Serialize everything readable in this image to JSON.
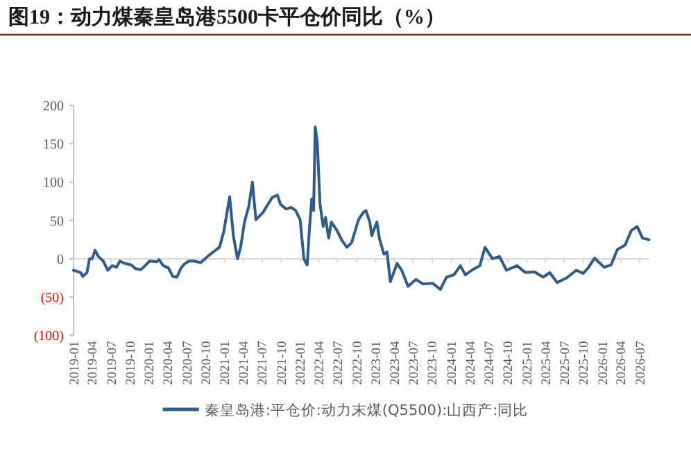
{
  "chart_data": {
    "type": "line",
    "title": "图19：动力煤秦皇岛港5500卡平仓价同比（%）",
    "x": [
      "2019-01-01",
      "2019-02-04",
      "2019-02-15",
      "2019-03-07",
      "2019-03-19",
      "2019-04-01",
      "2019-04-15",
      "2019-05-01",
      "2019-05-25",
      "2019-06-15",
      "2019-07-07",
      "2019-07-28",
      "2019-08-13",
      "2019-09-04",
      "2019-10-07",
      "2019-10-28",
      "2019-11-22",
      "2019-12-13",
      "2020-01-04",
      "2020-02-07",
      "2020-02-19",
      "2020-03-10",
      "2020-04-04",
      "2020-04-25",
      "2020-05-15",
      "2020-06-04",
      "2020-06-19",
      "2020-07-13",
      "2020-08-04",
      "2020-09-07",
      "2020-10-10",
      "2020-11-07",
      "2020-12-07",
      "2020-12-28",
      "2021-01-25",
      "2021-02-12",
      "2021-03-04",
      "2021-03-19",
      "2021-04-07",
      "2021-04-28",
      "2021-05-15",
      "2021-06-01",
      "2021-07-04",
      "2021-08-19",
      "2021-09-13",
      "2021-09-28",
      "2021-10-25",
      "2021-11-19",
      "2021-12-10",
      "2022-01-01",
      "2022-01-19",
      "2022-02-04",
      "2022-02-15",
      "2022-02-26",
      "2022-03-07",
      "2022-03-15",
      "2022-03-25",
      "2022-04-07",
      "2022-04-22",
      "2022-05-04",
      "2022-05-19",
      "2022-06-01",
      "2022-06-28",
      "2022-07-22",
      "2022-08-15",
      "2022-09-07",
      "2022-10-10",
      "2022-11-01",
      "2022-11-15",
      "2022-12-04",
      "2022-12-13",
      "2023-01-07",
      "2023-01-19",
      "2023-02-10",
      "2023-02-25",
      "2023-03-13",
      "2023-04-15",
      "2023-05-07",
      "2023-06-07",
      "2023-07-15",
      "2023-08-19",
      "2023-10-04",
      "2023-11-10",
      "2023-12-10",
      "2024-01-15",
      "2024-02-15",
      "2024-03-10",
      "2024-04-10",
      "2024-05-19",
      "2024-06-13",
      "2024-07-19",
      "2024-08-22",
      "2024-09-25",
      "2024-11-15",
      "2024-12-25",
      "2025-02-07",
      "2025-03-22",
      "2025-04-22",
      "2025-05-28",
      "2025-07-13",
      "2025-08-28",
      "2025-10-01",
      "2025-10-25",
      "2025-11-25",
      "2026-01-10",
      "2026-02-13",
      "2026-03-15",
      "2026-04-22",
      "2026-05-22",
      "2026-06-19",
      "2026-07-15",
      "2026-08-15"
    ],
    "series": [
      {
        "name": "秦皇岛港:平仓价:动力末煤(Q5500):山西产:同比",
        "color": "#2e5a8c",
        "values": [
          -15,
          -18,
          -23,
          -18,
          0,
          0,
          11,
          3,
          -3,
          -15,
          -9,
          -11,
          -3,
          -6,
          -8,
          -13,
          -14,
          -9,
          -3,
          -4,
          -1,
          -9,
          -12,
          -23,
          -24,
          -12,
          -7,
          -3,
          -3,
          -5,
          3,
          9,
          15,
          36,
          81,
          30,
          0,
          15,
          48,
          69,
          100,
          51,
          60,
          80,
          83,
          71,
          65,
          67,
          63,
          51,
          0,
          -8,
          39,
          78,
          63,
          172,
          151,
          72,
          42,
          54,
          27,
          48,
          37,
          24,
          15,
          21,
          51,
          60,
          63,
          48,
          30,
          48,
          27,
          6,
          9,
          -30,
          -6,
          -15,
          -36,
          -27,
          -33,
          -32,
          -40,
          -24,
          -21,
          -9,
          -21,
          -15,
          -9,
          15,
          0,
          3,
          -15,
          -9,
          -18,
          -17,
          -24,
          -18,
          -31,
          -25,
          -15,
          -19,
          -12,
          1,
          -11,
          -8,
          12,
          18,
          37,
          42,
          27,
          25
        ]
      }
    ],
    "xlim": [
      "2019-01-01",
      "2026-08-15"
    ],
    "xticks": [
      "2019-01",
      "2019-04",
      "2019-07",
      "2019-10",
      "2020-01",
      "2020-04",
      "2020-07",
      "2020-10",
      "2021-01",
      "2021-04",
      "2021-07",
      "2021-10",
      "2022-01",
      "2022-04",
      "2022-07",
      "2022-10",
      "2023-01",
      "2023-04",
      "2023-07",
      "2023-10",
      "2024-01",
      "2024-04",
      "2024-07",
      "2024-10",
      "2025-01",
      "2025-04",
      "2025-07",
      "2025-10",
      "2026-01",
      "2026-04",
      "2026-07"
    ],
    "ylim": [
      -100,
      200
    ],
    "yticks": [
      {
        "value": -100,
        "label": "(100)"
      },
      {
        "value": -50,
        "label": "(50)"
      },
      0,
      50,
      100,
      150,
      200
    ],
    "legend": "bottom"
  }
}
